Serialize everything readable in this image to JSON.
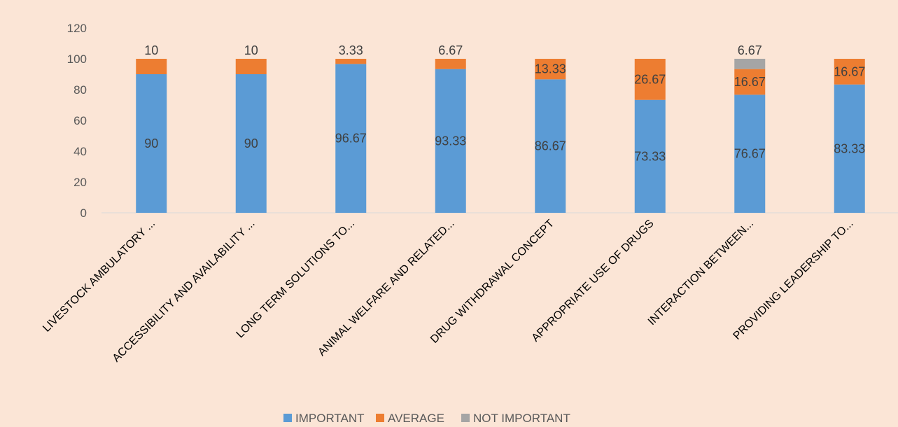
{
  "chart_data": {
    "type": "bar",
    "stacked": true,
    "categories": [
      "LIVESTOCK AMBULATORY ...",
      "ACCESSIBILITY AND AVAILABILITY ...",
      "LONG TERM SOLUTIONS TO...",
      "ANIMAL WELFARE AND RELATED...",
      "DRUG WITHDRAWAL CONCEPT",
      "APPROPRIATE USE OF DRUGS",
      "INTERACTION BETWEEN...",
      "PROVIDING LEADERSHIP TO..."
    ],
    "series": [
      {
        "name": "IMPORTANT",
        "color": "#5b9bd5",
        "values": [
          90,
          90,
          96.67,
          93.33,
          86.67,
          73.33,
          76.67,
          83.33
        ],
        "labels": [
          "90",
          "90",
          "96.67",
          "93.33",
          "86.67",
          "73.33",
          "76.67",
          "83.33"
        ]
      },
      {
        "name": "AVERAGE",
        "color": "#ed7d31",
        "values": [
          10,
          10,
          3.33,
          6.67,
          13.33,
          26.67,
          16.67,
          16.67
        ],
        "labels": [
          "10",
          "10",
          "3.33",
          "6.67",
          "13.33",
          "26.67",
          "16.67",
          "16.67"
        ]
      },
      {
        "name": "NOT IMPORTANT",
        "color": "#a5a5a5",
        "values": [
          0,
          0,
          0,
          0,
          0,
          0,
          6.67,
          0
        ],
        "labels": [
          "",
          "",
          "",
          "",
          "",
          "",
          "6.67",
          ""
        ]
      }
    ],
    "title": "",
    "xlabel": "",
    "ylabel": "",
    "ylim": [
      0,
      120
    ],
    "yticks": [
      0,
      20,
      40,
      60,
      80,
      100,
      120
    ],
    "grid": false,
    "legend": "bottom",
    "background": "#fbe5d6"
  }
}
